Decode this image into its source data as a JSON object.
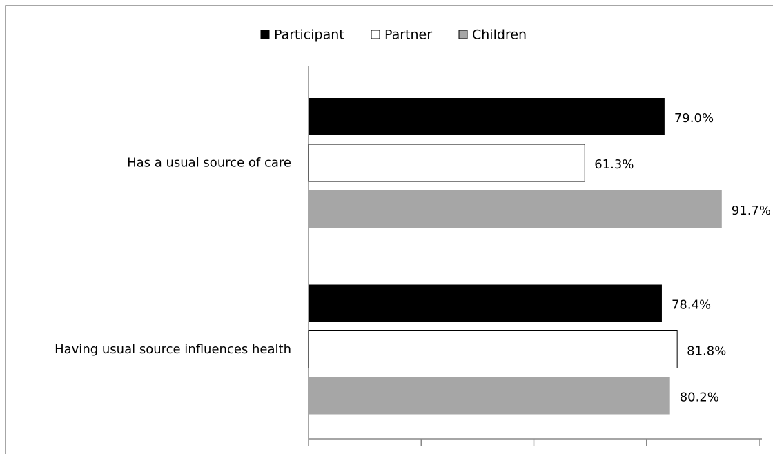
{
  "chart_data": {
    "type": "barh",
    "categories": [
      "Has a usual source of care",
      "Having usual source influences health"
    ],
    "series": [
      {
        "name": "Participant",
        "color": "#000000",
        "values": [
          79.0,
          78.4
        ],
        "value_labels": [
          "79.0%",
          "78.4%"
        ]
      },
      {
        "name": "Partner",
        "color": "#ffffff",
        "values": [
          61.3,
          81.8
        ],
        "value_labels": [
          "61.3%",
          "81.8%"
        ]
      },
      {
        "name": "Children",
        "color": "#a6a6a6",
        "values": [
          91.7,
          80.2
        ],
        "value_labels": [
          "91.7%",
          "80.2%"
        ]
      }
    ],
    "xlim": [
      0,
      100
    ],
    "xticks": [
      0,
      25,
      50,
      75,
      100
    ],
    "legend": "top"
  }
}
